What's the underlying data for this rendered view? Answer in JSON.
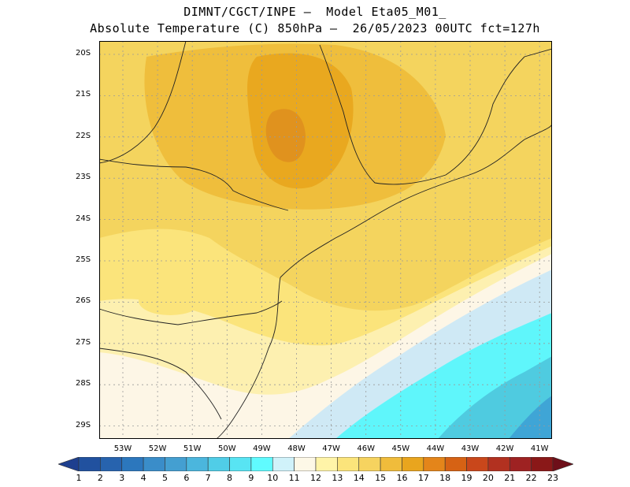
{
  "header": {
    "line1": "DIMNT/CGCT/INPE —  Model Eta05_M01_",
    "line2": "Absolute Temperature (C) 850hPa —  26/05/2023 00UTC fct=127h"
  },
  "map": {
    "lat_labels": [
      "20S",
      "21S",
      "22S",
      "23S",
      "24S",
      "25S",
      "26S",
      "27S",
      "28S",
      "29S"
    ],
    "lon_labels": [
      "53W",
      "52W",
      "51W",
      "50W",
      "49W",
      "48W",
      "47W",
      "46W",
      "45W",
      "44W",
      "43W",
      "42W",
      "41W"
    ],
    "field_colors": {
      "c10": "#cfe9f5",
      "c11": "#fdf6e6",
      "c12": "#fdf0b0",
      "c13": "#f8e37a",
      "c14": "#f4d45e",
      "c15": "#efbe3c",
      "c16": "#e9a81f",
      "c17": "#e0921e",
      "cyan": "#5ff6fb",
      "teal": "#4fcbe0",
      "blue": "#3fa5d6"
    }
  },
  "colorbar": {
    "labels": [
      "1",
      "2",
      "3",
      "4",
      "5",
      "6",
      "7",
      "8",
      "9",
      "10",
      "11",
      "12",
      "13",
      "14",
      "15",
      "16",
      "17",
      "18",
      "19",
      "20",
      "21",
      "22",
      "23"
    ],
    "colors": [
      "#1e3f8f",
      "#21519f",
      "#2763ae",
      "#2c77bd",
      "#3a8dc9",
      "#449fd1",
      "#4bb6dd",
      "#50cde7",
      "#58e4f3",
      "#60fbff",
      "#d0f2fa",
      "#fdf8e7",
      "#fff4a8",
      "#fbe47b",
      "#f6d35f",
      "#f0bc3b",
      "#e9a51e",
      "#e4851a",
      "#d66214",
      "#c9471b",
      "#b23120",
      "#9e2222",
      "#8a1818",
      "#6e0f19"
    ]
  }
}
